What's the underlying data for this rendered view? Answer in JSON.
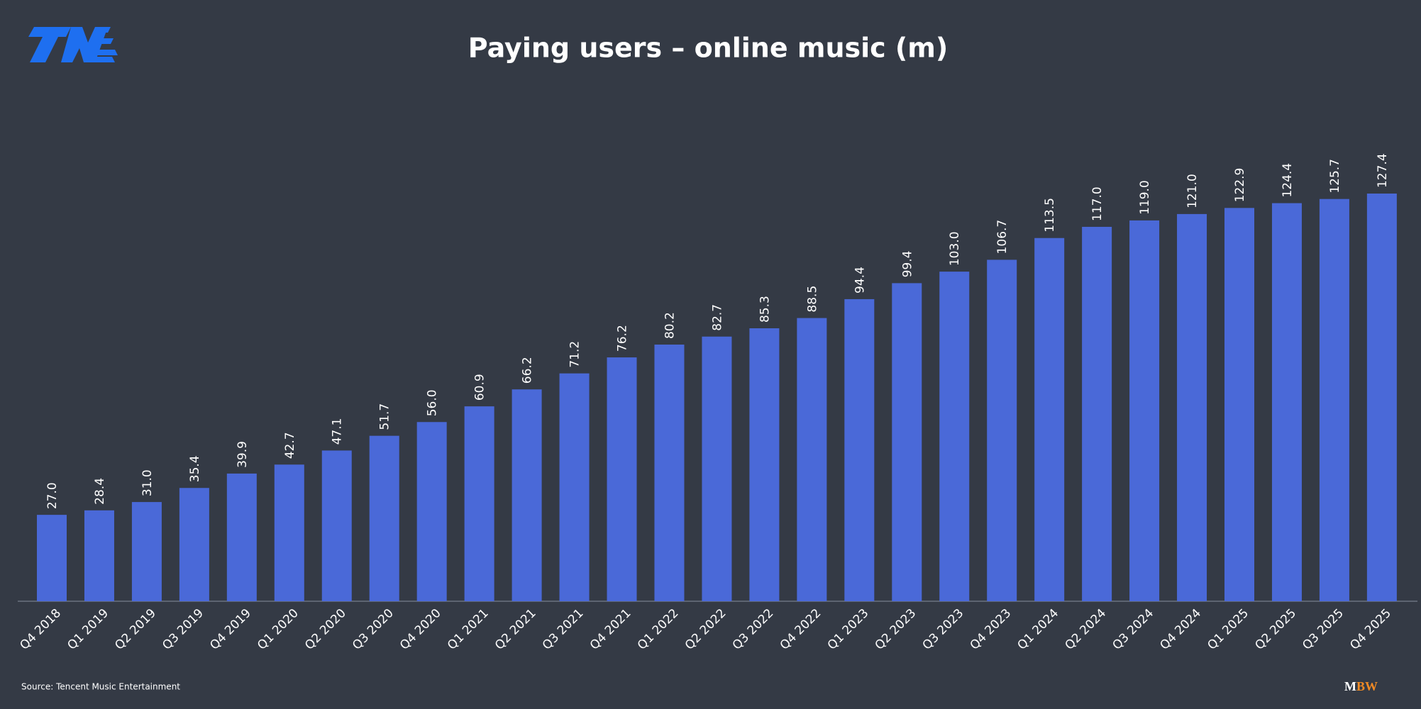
{
  "chart_data": {
    "type": "bar",
    "title": "Paying users – online music (m)",
    "categories": [
      "Q4 2018",
      "Q1 2019",
      "Q2 2019",
      "Q3 2019",
      "Q4 2019",
      "Q1 2020",
      "Q2 2020",
      "Q3 2020",
      "Q4 2020",
      "Q1 2021",
      "Q2 2021",
      "Q3 2021",
      "Q4 2021",
      "Q1 2022",
      "Q2 2022",
      "Q3 2022",
      "Q4 2022",
      "Q1 2023",
      "Q2 2023",
      "Q3 2023",
      "Q4 2023",
      "Q1 2024",
      "Q2 2024",
      "Q3 2024",
      "Q4 2024",
      "Q1 2025",
      "Q2 2025",
      "Q3 2025",
      "Q4 2025"
    ],
    "values": [
      27.0,
      28.4,
      31.0,
      35.4,
      39.9,
      42.7,
      47.1,
      51.7,
      56.0,
      60.9,
      66.2,
      71.2,
      76.2,
      80.2,
      82.7,
      85.3,
      88.5,
      94.4,
      99.4,
      103.0,
      106.7,
      113.5,
      117.0,
      119.0,
      121.0,
      122.9,
      124.4,
      125.7,
      127.4
    ],
    "value_labels": [
      "27.0",
      "28.4",
      "31.0",
      "35.4",
      "39.9",
      "42.7",
      "47.1",
      "51.7",
      "56.0",
      "60.9",
      "66.2",
      "71.2",
      "76.2",
      "80.2",
      "82.7",
      "85.3",
      "88.5",
      "94.4",
      "99.4",
      "103.0",
      "106.7",
      "113.5",
      "117.0",
      "119.0",
      "121.0",
      "122.9",
      "124.4",
      "125.7",
      "127.4"
    ],
    "color": "#4a69d8"
  },
  "source": "Source: Tencent Music Entertainment",
  "watermark": [
    "M",
    "BW"
  ]
}
